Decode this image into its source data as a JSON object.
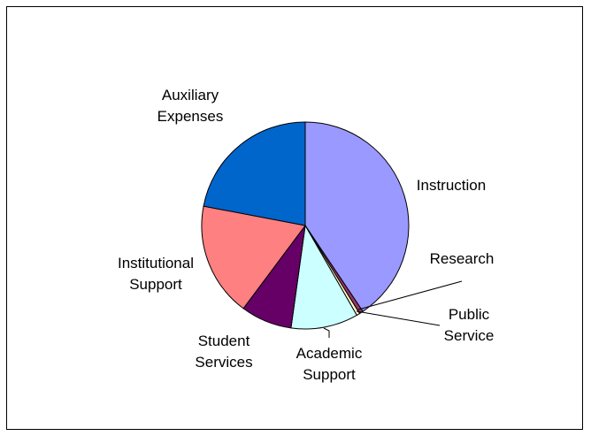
{
  "chart_data": {
    "type": "pie",
    "categories": [
      "Instruction",
      "Research",
      "Public Service",
      "Academic Support",
      "Student Services",
      "Institutional Support",
      "Auxiliary Expenses"
    ],
    "values": [
      40.6,
      0.6,
      0.5,
      10.5,
      8,
      17.8,
      22
    ],
    "colors": [
      "#9999ff",
      "#993366",
      "#ffffcc",
      "#ccffff",
      "#660066",
      "#ff8080",
      "#0066cc"
    ]
  }
}
